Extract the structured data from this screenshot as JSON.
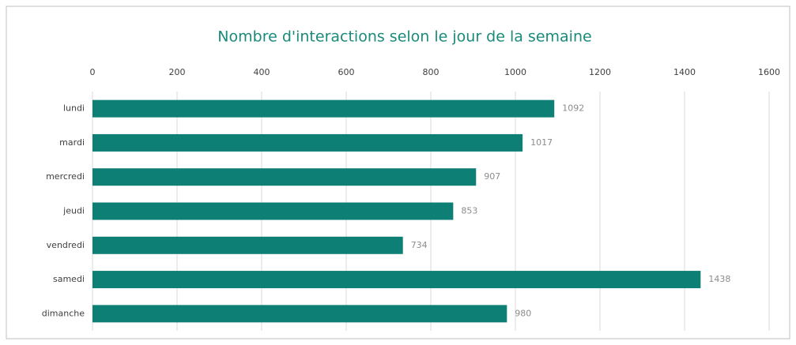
{
  "chart_data": {
    "type": "bar",
    "title": "Nombre d'interactions selon le jour de la semaine",
    "categories": [
      "lundi",
      "mardi",
      "mercredi",
      "jeudi",
      "vendredi",
      "samedi",
      "dimanche"
    ],
    "values": [
      1092,
      1017,
      907,
      853,
      734,
      1438,
      980
    ],
    "color": "#0e7f74",
    "xlim": [
      0,
      1600
    ],
    "xticks": [
      0,
      200,
      400,
      600,
      800,
      1000,
      1200,
      1400,
      1600
    ],
    "grid": true
  }
}
